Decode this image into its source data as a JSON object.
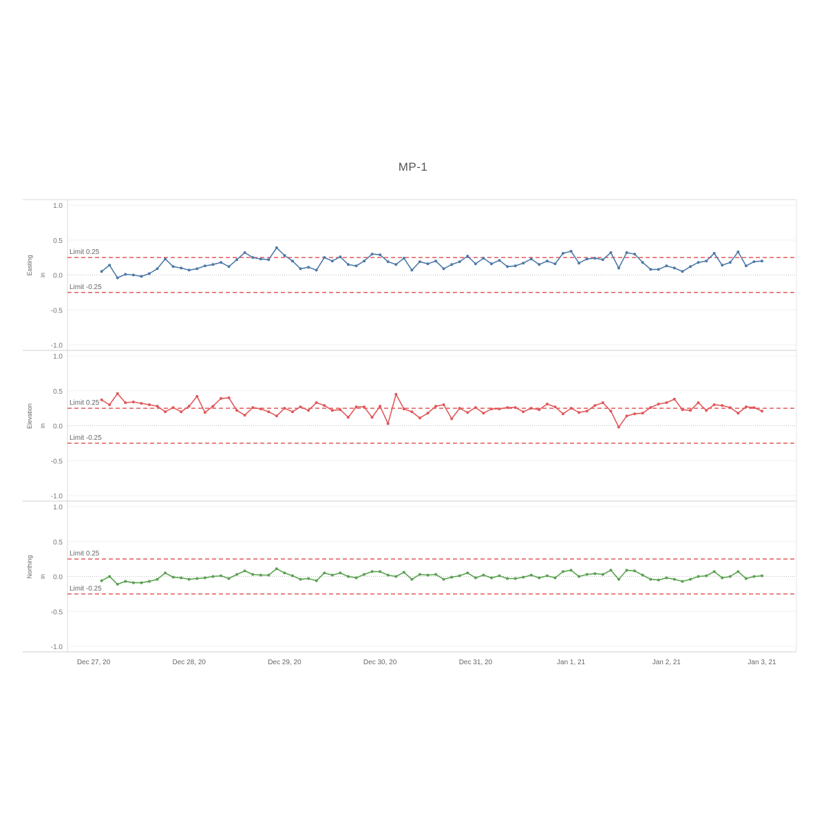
{
  "title": "MP-1",
  "limit_color": "#e15759",
  "chart_data": [
    {
      "type": "line",
      "ylabel": "Easting",
      "unit": "in",
      "color": "#4e79a7",
      "ylim": [
        -1.0,
        1.0
      ],
      "yticks": [
        1.0,
        0.5,
        0.0,
        -0.5,
        -1.0
      ],
      "ytick_labels": [
        "1.0",
        "0.5",
        "0.0",
        "-0.5",
        "-1.0"
      ],
      "limits": [
        {
          "value": 0.25,
          "label": "Limit 0.25"
        },
        {
          "value": -0.25,
          "label": "Limit -0.25"
        }
      ],
      "x_start": "Dec 27, 20 08:00",
      "x_step_hours": 2,
      "values": [
        0.05,
        0.14,
        -0.04,
        0.01,
        0.0,
        -0.02,
        0.02,
        0.09,
        0.23,
        0.12,
        0.1,
        0.07,
        0.09,
        0.13,
        0.15,
        0.18,
        0.12,
        0.22,
        0.32,
        0.25,
        0.23,
        0.22,
        0.39,
        0.28,
        0.2,
        0.09,
        0.11,
        0.07,
        0.25,
        0.2,
        0.26,
        0.15,
        0.13,
        0.2,
        0.3,
        0.29,
        0.19,
        0.15,
        0.24,
        0.07,
        0.19,
        0.16,
        0.2,
        0.09,
        0.15,
        0.19,
        0.27,
        0.16,
        0.24,
        0.16,
        0.21,
        0.12,
        0.13,
        0.17,
        0.23,
        0.15,
        0.2,
        0.16,
        0.31,
        0.34,
        0.17,
        0.23,
        0.24,
        0.22,
        0.32,
        0.1,
        0.32,
        0.3,
        0.18,
        0.08,
        0.08,
        0.13,
        0.1,
        0.05,
        0.12,
        0.18,
        0.2,
        0.31,
        0.14,
        0.18,
        0.33,
        0.13,
        0.19,
        0.2
      ]
    },
    {
      "type": "line",
      "ylabel": "Elevation",
      "unit": "in",
      "color": "#e15759",
      "ylim": [
        -1.0,
        1.0
      ],
      "yticks": [
        1.0,
        0.5,
        0.0,
        -0.5,
        -1.0
      ],
      "ytick_labels": [
        "1.0",
        "0.5",
        "0.0",
        "-0.5",
        "-1.0"
      ],
      "limits": [
        {
          "value": 0.25,
          "label": "Limit 0.25"
        },
        {
          "value": -0.25,
          "label": "Limit -0.25"
        }
      ],
      "x_start": "Dec 27, 20 08:00",
      "x_step_hours": 2,
      "values": [
        0.37,
        0.3,
        0.46,
        0.33,
        0.34,
        0.32,
        0.3,
        0.28,
        0.2,
        0.26,
        0.2,
        0.28,
        0.42,
        0.19,
        0.28,
        0.39,
        0.4,
        0.22,
        0.15,
        0.26,
        0.24,
        0.2,
        0.14,
        0.25,
        0.2,
        0.27,
        0.22,
        0.33,
        0.29,
        0.22,
        0.23,
        0.12,
        0.27,
        0.27,
        0.12,
        0.28,
        0.03,
        0.45,
        0.24,
        0.2,
        0.11,
        0.18,
        0.28,
        0.3,
        0.1,
        0.25,
        0.19,
        0.26,
        0.18,
        0.24,
        0.24,
        0.26,
        0.26,
        0.2,
        0.25,
        0.23,
        0.31,
        0.27,
        0.17,
        0.25,
        0.19,
        0.21,
        0.29,
        0.33,
        0.21,
        -0.02,
        0.14,
        0.17,
        0.18,
        0.26,
        0.31,
        0.33,
        0.38,
        0.23,
        0.22,
        0.33,
        0.22,
        0.3,
        0.29,
        0.26,
        0.18,
        0.27,
        0.26,
        0.21
      ]
    },
    {
      "type": "line",
      "ylabel": "Northing",
      "unit": "in",
      "color": "#59a14f",
      "ylim": [
        -1.0,
        1.0
      ],
      "yticks": [
        1.0,
        0.5,
        0.0,
        -0.5,
        -1.0
      ],
      "ytick_labels": [
        "1.0",
        "0.5",
        "0.0",
        "-0.5",
        "-1.0"
      ],
      "limits": [
        {
          "value": 0.25,
          "label": "Limit 0.25"
        },
        {
          "value": -0.25,
          "label": "Limit -0.25"
        }
      ],
      "x_start": "Dec 27, 20 08:00",
      "x_step_hours": 2,
      "values": [
        -0.06,
        0.0,
        -0.11,
        -0.07,
        -0.09,
        -0.09,
        -0.07,
        -0.04,
        0.05,
        -0.01,
        -0.02,
        -0.04,
        -0.03,
        -0.02,
        0.0,
        0.01,
        -0.03,
        0.03,
        0.08,
        0.03,
        0.02,
        0.02,
        0.11,
        0.05,
        0.01,
        -0.04,
        -0.03,
        -0.06,
        0.05,
        0.02,
        0.05,
        0.0,
        -0.02,
        0.03,
        0.07,
        0.07,
        0.02,
        0.0,
        0.06,
        -0.04,
        0.03,
        0.02,
        0.03,
        -0.04,
        -0.01,
        0.01,
        0.05,
        -0.02,
        0.02,
        -0.02,
        0.01,
        -0.03,
        -0.03,
        -0.01,
        0.02,
        -0.02,
        0.01,
        -0.02,
        0.07,
        0.09,
        0.0,
        0.03,
        0.04,
        0.03,
        0.09,
        -0.04,
        0.09,
        0.08,
        0.02,
        -0.04,
        -0.05,
        -0.02,
        -0.04,
        -0.07,
        -0.04,
        0.0,
        0.01,
        0.07,
        -0.02,
        0.0,
        0.07,
        -0.03,
        0.0,
        0.01
      ]
    }
  ],
  "x_axis": {
    "ticks": [
      {
        "label": "Dec 27, 20",
        "hour": 0
      },
      {
        "label": "Dec 28, 20",
        "hour": 24
      },
      {
        "label": "Dec 29, 20",
        "hour": 48
      },
      {
        "label": "Dec 30, 20",
        "hour": 72
      },
      {
        "label": "Dec 31, 20",
        "hour": 96
      },
      {
        "label": "Jan 1, 21",
        "hour": 120
      },
      {
        "label": "Jan 2, 21",
        "hour": 144
      },
      {
        "label": "Jan 3, 21",
        "hour": 168
      }
    ],
    "first_point_hour": 2
  }
}
